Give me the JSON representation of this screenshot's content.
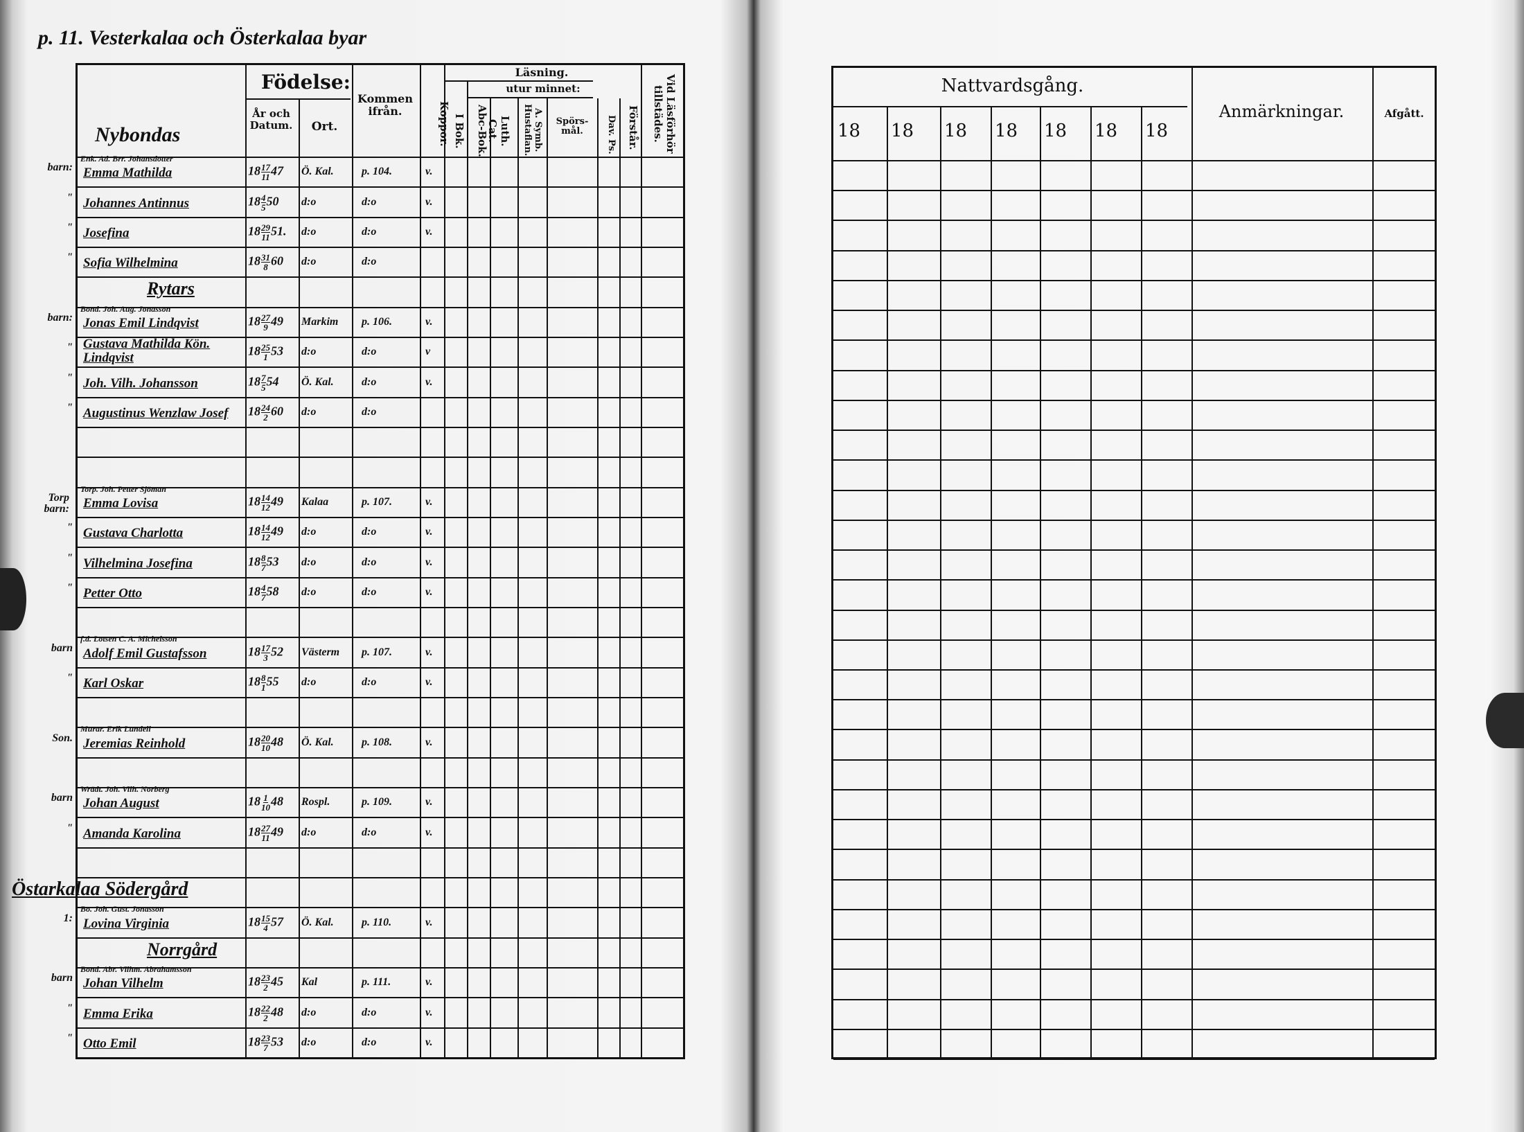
{
  "page_heading": "p. 11. Vesterkalaa och Österkalaa byar",
  "left_table": {
    "section_label": "Nybondas",
    "headers": {
      "fodelse": "Födelse:",
      "ar_och_datum": "År och Datum.",
      "ort": "Ort.",
      "kommen_ifran": "Kommen ifrån.",
      "koppor": "Koppor.",
      "lasning": "Läsning.",
      "i_bok": "I Bok.",
      "utur_minnet": "utur minnet:",
      "abc_bok": "Abc-Bok.",
      "luth_cat": "Luth. Cat.",
      "a_symb": "A. Symb. Hustaflan.",
      "sporsmal": "Spörs-mål.",
      "dav_ps": "Dav. Ps.",
      "forestar": "Förstår.",
      "vid_lasforhor": "Vid Läsförhör tillstädes."
    },
    "rows": [
      {
        "margin": "barn:",
        "note": "Enk. Ad. Brr. Johansdotter",
        "name": "Emma Mathilda",
        "century": "18",
        "day": "17",
        "month": "11",
        "year": "47",
        "ort": "Ö. Kal.",
        "kommen": "p. 104.",
        "koppor": "v."
      },
      {
        "margin": "\"",
        "name": "Johannes Antinnus",
        "century": "18",
        "day": "4",
        "month": "5",
        "year": "50",
        "ort": "d:o",
        "kommen": "d:o",
        "koppor": "v."
      },
      {
        "margin": "\"",
        "name": "Josefina",
        "century": "18",
        "day": "29",
        "month": "11",
        "year": "51.",
        "ort": "d:o",
        "kommen": "d:o",
        "koppor": "v."
      },
      {
        "margin": "\"",
        "name": "Sofia Wilhelmina",
        "century": "18",
        "day": "31",
        "month": "8",
        "year": "60",
        "ort": "d:o",
        "kommen": "d:o",
        "koppor": ""
      },
      {
        "heading": "Rytars"
      },
      {
        "margin": "barn:",
        "note": "Bond. Joh. Aug. Jonasson",
        "name": "Jonas Emil Lindqvist",
        "century": "18",
        "day": "27",
        "month": "9",
        "year": "49",
        "ort": "Markim",
        "kommen": "p. 106.",
        "koppor": "v."
      },
      {
        "margin": "\"",
        "name": "Gustava Mathilda Kön. Lindqvist",
        "century": "18",
        "day": "25",
        "month": "1",
        "year": "53",
        "ort": "d:o",
        "kommen": "d:o",
        "koppor": "v"
      },
      {
        "margin": "\"",
        "name": "Joh. Vilh. Johansson",
        "century": "18",
        "day": "7",
        "month": "5",
        "year": "54",
        "ort": "Ö. Kal.",
        "kommen": "d:o",
        "koppor": "v."
      },
      {
        "margin": "\"",
        "name": "Augustinus Wenzlaw Josef",
        "century": "18",
        "day": "24",
        "month": "2",
        "year": "60",
        "ort": "d:o",
        "kommen": "d:o",
        "koppor": ""
      },
      {},
      {},
      {
        "margin": "Torp barn:",
        "note": "Torp. Joh. Petter Sjöman",
        "name": "Emma Lovisa",
        "century": "18",
        "day": "14",
        "month": "12",
        "year": "49",
        "ort": "Kalaa",
        "kommen": "p. 107.",
        "koppor": "v."
      },
      {
        "margin": "\"",
        "name": "Gustava Charlotta",
        "century": "18",
        "day": "14",
        "month": "12",
        "year": "49",
        "ort": "d:o",
        "kommen": "d:o",
        "koppor": "v."
      },
      {
        "margin": "\"",
        "name": "Vilhelmina Josefina",
        "century": "18",
        "day": "8",
        "month": "7",
        "year": "53",
        "ort": "d:o",
        "kommen": "d:o",
        "koppor": "v."
      },
      {
        "margin": "\"",
        "name": "Petter Otto",
        "century": "18",
        "day": "4",
        "month": "7",
        "year": "58",
        "ort": "d:o",
        "kommen": "d:o",
        "koppor": "v."
      },
      {},
      {
        "margin": "barn",
        "note": "f.d. Lotsen C. A. Michelsson",
        "name": "Adolf Emil Gustafsson",
        "century": "18",
        "day": "17",
        "month": "3",
        "year": "52",
        "ort": "Västerm",
        "kommen": "p. 107.",
        "koppor": "v."
      },
      {
        "margin": "\"",
        "name": "Karl Oskar",
        "century": "18",
        "day": "8",
        "month": "1",
        "year": "55",
        "ort": "d:o",
        "kommen": "d:o",
        "koppor": "v."
      },
      {},
      {
        "margin": "Son.",
        "note": "Murar. Erik Lundell",
        "name": "Jeremias Reinhold",
        "century": "18",
        "day": "20",
        "month": "10",
        "year": "48",
        "ort": "Ö. Kal.",
        "kommen": "p. 108.",
        "koppor": "v."
      },
      {},
      {
        "margin": "barn",
        "note": "Wrädt. Joh. Vilh. Norberg",
        "name": "Johan August",
        "century": "18",
        "day": "1",
        "month": "10",
        "year": "48",
        "ort": "Rospl.",
        "kommen": "p. 109.",
        "koppor": "v."
      },
      {
        "margin": "\"",
        "name": "Amanda Karolina",
        "century": "18",
        "day": "27",
        "month": "11",
        "year": "49",
        "ort": "d:o",
        "kommen": "d:o",
        "koppor": "v."
      },
      {},
      {
        "heading": "Östarkalaa Södergård",
        "wide": true
      },
      {
        "margin": "1:",
        "note": "Bo. Joh. Gust. Jonasson",
        "name": "Lovina Virginia",
        "century": "18",
        "day": "15",
        "month": "4",
        "year": "57",
        "ort": "Ö. Kal.",
        "kommen": "p. 110.",
        "koppor": "v."
      },
      {
        "heading": "Norrgård"
      },
      {
        "margin": "barn",
        "note": "Bond. Abr. Vilhm. Abrahamsson",
        "name": "Johan Vilhelm",
        "century": "18",
        "day": "23",
        "month": "2",
        "year": "45",
        "ort": "Kal",
        "kommen": "p. 111.",
        "koppor": "v."
      },
      {
        "margin": "\"",
        "name": "Emma Erika",
        "century": "18",
        "day": "22",
        "month": "2",
        "year": "48",
        "ort": "d:o",
        "kommen": "d:o",
        "koppor": "v."
      },
      {
        "margin": "\"",
        "name": "Otto Emil",
        "century": "18",
        "day": "23",
        "month": "7",
        "year": "53",
        "ort": "d:o",
        "kommen": "d:o",
        "koppor": "v."
      }
    ]
  },
  "right_table": {
    "nattvardsgang": "Nattvardsgång.",
    "year_prefixes": [
      "18",
      "18",
      "18",
      "18",
      "18",
      "18",
      "18"
    ],
    "anmarkningar": "Anmärkningar.",
    "afgatt": "Afgått."
  }
}
